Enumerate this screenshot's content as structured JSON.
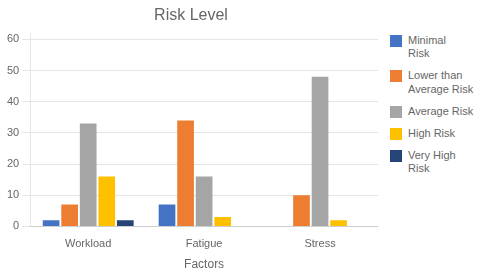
{
  "chart_data": {
    "type": "bar",
    "title": "Risk Level",
    "xlabel": "Factors",
    "categories": [
      "Workload",
      "Fatigue",
      "Stress"
    ],
    "series": [
      {
        "name": "Minimal\nRisk",
        "color": "#4472C4",
        "values": [
          2,
          7,
          0
        ]
      },
      {
        "name": "Lower than\nAverage Risk",
        "color": "#ED7D31",
        "values": [
          7,
          34,
          10
        ]
      },
      {
        "name": "Average Risk",
        "color": "#A5A5A5",
        "values": [
          33,
          16,
          48
        ]
      },
      {
        "name": "High Risk",
        "color": "#FFC000",
        "values": [
          16,
          3,
          2
        ]
      },
      {
        "name": "Very High\nRisk",
        "color": "#264478",
        "values": [
          2,
          0,
          0
        ]
      }
    ],
    "ylim": [
      0,
      62
    ],
    "yticks": [
      0,
      10,
      20,
      30,
      40,
      50,
      60
    ],
    "grid": true,
    "legend": "right"
  }
}
